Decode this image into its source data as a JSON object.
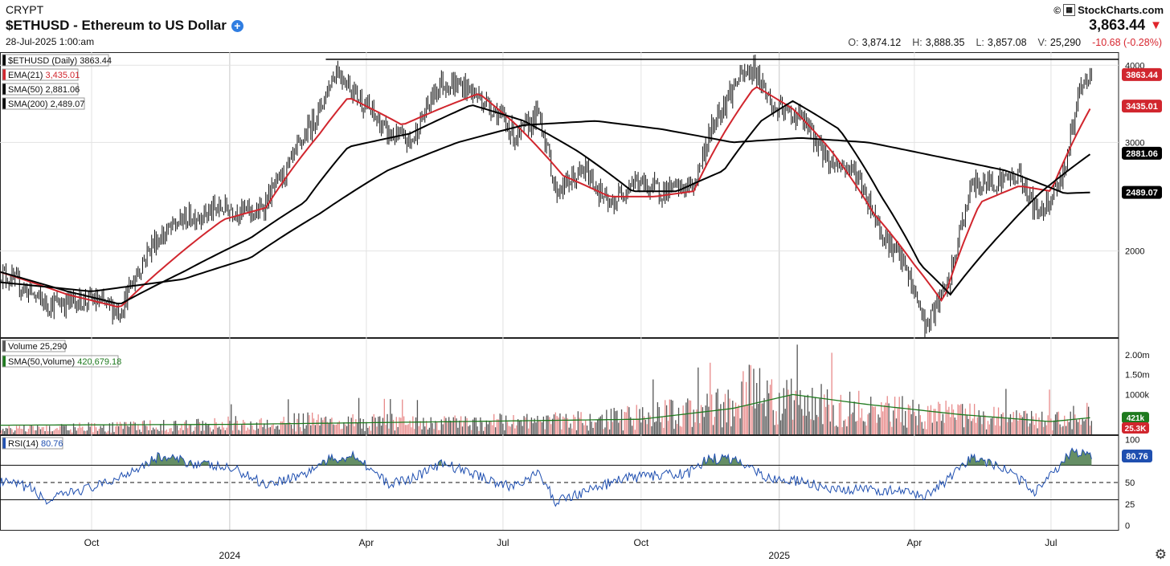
{
  "header": {
    "exchange": "CRYPT",
    "title": "$ETHUSD - Ethereum to US Dollar",
    "date": "28-Jul-2025 1:00:am",
    "brand": "StockCharts.com",
    "last_price": "3,863.44",
    "ohlc": [
      {
        "label": "O:",
        "value": "3,874.12"
      },
      {
        "label": "H:",
        "value": "3,888.35"
      },
      {
        "label": "L:",
        "value": "3,857.08"
      },
      {
        "label": "V:",
        "value": "25,290"
      }
    ],
    "change": "-10.68 (-0.28%)"
  },
  "colors": {
    "price": "#000000",
    "ema21": "#d1262e",
    "sma50": "#000000",
    "sma200": "#000000",
    "vol_up": "#555555",
    "vol_down": "#e88a8a",
    "vol_sma": "#1e7a1e",
    "rsi": "#1f4fb0",
    "rsi_fill": "#4a7a4a"
  },
  "chart_data": [
    {
      "type": "line",
      "panel": "price",
      "legend": [
        {
          "text": "$ETHUSD (Daily) 3863.44",
          "color": "#000000"
        },
        {
          "text": "EMA(21)",
          "value": "3,435.01",
          "color": "#d1262e"
        },
        {
          "text": "SMA(50)",
          "value": "2,881.06",
          "color": "#000000"
        },
        {
          "text": "SMA(200)",
          "value": "2,489.07",
          "color": "#000000"
        }
      ],
      "y_scale": "log",
      "ylim": [
        1450,
        4200
      ],
      "y_ticks": [
        2000,
        3000,
        4000
      ],
      "x_ticks": [
        "Oct",
        "2024",
        "Apr",
        "Jul",
        "Oct",
        "2025",
        "Apr",
        "Jul"
      ],
      "x_year_labels": [
        "2024",
        "2025"
      ],
      "x_range": [
        "2023-08-01",
        "2025-08-15"
      ],
      "resistance_level": 4090,
      "right_labels": [
        {
          "text": "3863.44",
          "value": 3863.44,
          "color": "#d1262e"
        },
        {
          "text": "3435.01",
          "value": 3435.01,
          "color": "#d1262e"
        },
        {
          "text": "2881.06",
          "value": 2881.06,
          "color": "#000000"
        },
        {
          "text": "2489.07",
          "value": 2489.07,
          "color": "#000000"
        }
      ],
      "series": [
        {
          "name": "$ETHUSD (Daily)",
          "x": [
            "2023-08-01",
            "2023-09-01",
            "2023-10-01",
            "2023-10-20",
            "2023-11-10",
            "2023-12-01",
            "2023-12-28",
            "2024-01-20",
            "2024-02-10",
            "2024-03-01",
            "2024-03-12",
            "2024-03-25",
            "2024-04-15",
            "2024-05-01",
            "2024-05-20",
            "2024-06-05",
            "2024-06-25",
            "2024-07-10",
            "2024-07-25",
            "2024-08-05",
            "2024-08-25",
            "2024-09-10",
            "2024-09-25",
            "2024-10-15",
            "2024-11-05",
            "2024-11-20",
            "2024-12-05",
            "2024-12-16",
            "2024-12-28",
            "2025-01-15",
            "2025-02-03",
            "2025-02-20",
            "2025-03-10",
            "2025-03-25",
            "2025-04-09",
            "2025-04-25",
            "2025-05-09",
            "2025-05-25",
            "2025-06-10",
            "2025-06-22",
            "2025-07-01",
            "2025-07-10",
            "2025-07-20",
            "2025-07-28"
          ],
          "values": [
            1850,
            1640,
            1670,
            1600,
            2050,
            2250,
            2350,
            2300,
            2750,
            3400,
            3950,
            3600,
            3100,
            3000,
            3750,
            3700,
            3400,
            3050,
            3350,
            2500,
            2700,
            2350,
            2600,
            2500,
            2550,
            3300,
            3800,
            3950,
            3400,
            3300,
            2800,
            2700,
            2150,
            1900,
            1500,
            1800,
            2550,
            2600,
            2650,
            2300,
            2450,
            2700,
            3600,
            3863.44
          ]
        },
        {
          "name": "EMA(21)",
          "x": [
            "2023-08-01",
            "2023-09-15",
            "2023-10-20",
            "2023-11-20",
            "2023-12-28",
            "2024-01-25",
            "2024-03-01",
            "2024-03-20",
            "2024-04-25",
            "2024-05-20",
            "2024-06-15",
            "2024-07-10",
            "2024-08-10",
            "2024-09-10",
            "2024-10-10",
            "2024-11-05",
            "2024-11-25",
            "2024-12-16",
            "2025-01-10",
            "2025-02-05",
            "2025-03-05",
            "2025-04-01",
            "2025-04-20",
            "2025-05-15",
            "2025-06-10",
            "2025-07-01",
            "2025-07-28"
          ],
          "values": [
            1850,
            1700,
            1620,
            1900,
            2250,
            2350,
            3100,
            3550,
            3200,
            3400,
            3600,
            3200,
            2650,
            2450,
            2450,
            2500,
            3100,
            3700,
            3400,
            2900,
            2300,
            1900,
            1650,
            2400,
            2550,
            2500,
            3435.01
          ]
        },
        {
          "name": "SMA(50)",
          "x": [
            "2023-08-01",
            "2023-09-15",
            "2023-10-20",
            "2023-12-01",
            "2024-01-15",
            "2024-02-20",
            "2024-03-20",
            "2024-04-30",
            "2024-06-10",
            "2024-07-15",
            "2024-08-20",
            "2024-09-25",
            "2024-10-25",
            "2024-11-25",
            "2024-12-20",
            "2025-01-10",
            "2025-02-10",
            "2025-03-10",
            "2025-04-05",
            "2025-04-25",
            "2025-05-30",
            "2025-06-25",
            "2025-07-28"
          ],
          "values": [
            1850,
            1720,
            1640,
            1850,
            2100,
            2400,
            2950,
            3100,
            3450,
            3250,
            2900,
            2500,
            2500,
            2700,
            3250,
            3500,
            3150,
            2450,
            1900,
            1700,
            2150,
            2500,
            2881.06
          ]
        },
        {
          "name": "SMA(200)",
          "x": [
            "2023-08-01",
            "2023-10-01",
            "2023-12-01",
            "2024-01-15",
            "2024-03-01",
            "2024-04-15",
            "2024-06-01",
            "2024-07-15",
            "2024-09-01",
            "2024-10-15",
            "2024-12-01",
            "2025-01-15",
            "2025-03-01",
            "2025-04-15",
            "2025-06-01",
            "2025-07-10",
            "2025-07-28"
          ],
          "values": [
            1780,
            1720,
            1800,
            1950,
            2300,
            2700,
            3000,
            3200,
            3250,
            3150,
            3000,
            3050,
            3000,
            2850,
            2700,
            2480,
            2489.07
          ]
        }
      ]
    },
    {
      "type": "bar",
      "panel": "volume",
      "legend": [
        {
          "text": "Volume",
          "value": "25,290",
          "color": "#555555"
        },
        {
          "text": "SMA(50,Volume)",
          "value": "420,679.18",
          "color": "#1e7a1e"
        }
      ],
      "y_ticks": [
        {
          "text": "2.00m",
          "value": 2000000
        },
        {
          "text": "1.50m",
          "value": 1500000
        },
        {
          "text": "1000k",
          "value": 1000000
        }
      ],
      "ylim": [
        0,
        2300000
      ],
      "right_labels": [
        {
          "text": "421k",
          "value": 421000,
          "color": "#1e7a1e"
        },
        {
          "text": "25.3K",
          "value": 25300,
          "color": "#d1262e"
        }
      ],
      "vol_sma": {
        "x": [
          "2023-08-01",
          "2024-01-01",
          "2024-06-01",
          "2024-10-01",
          "2024-12-01",
          "2025-01-10",
          "2025-03-01",
          "2025-05-01",
          "2025-07-01",
          "2025-07-28"
        ],
        "values": [
          230000,
          250000,
          320000,
          380000,
          650000,
          1000000,
          750000,
          500000,
          320000,
          421000
        ]
      },
      "level_anchors": {
        "x": [
          "2023-08-01",
          "2023-12-01",
          "2024-03-01",
          "2024-06-01",
          "2024-09-01",
          "2024-11-15",
          "2024-12-10",
          "2025-01-20",
          "2025-03-01",
          "2025-05-01",
          "2025-06-20",
          "2025-07-20"
        ],
        "values": [
          150000,
          260000,
          380000,
          330000,
          400000,
          700000,
          1200000,
          900000,
          700000,
          550000,
          400000,
          550000
        ]
      }
    },
    {
      "type": "line",
      "panel": "rsi",
      "legend": [
        {
          "text": "RSI(14)",
          "value": "80.76",
          "color": "#1f4fb0"
        }
      ],
      "ylim": [
        -5,
        105
      ],
      "y_ticks": [
        0,
        25,
        50,
        100
      ],
      "levels": [
        70,
        50,
        30
      ],
      "right_labels": [
        {
          "text": "80.76",
          "value": 80.76,
          "color": "#1f4fb0"
        }
      ],
      "series": [
        {
          "name": "RSI(14)",
          "x": [
            "2023-08-01",
            "2023-08-20",
            "2023-09-01",
            "2023-09-20",
            "2023-10-10",
            "2023-11-01",
            "2023-11-15",
            "2023-12-10",
            "2024-01-05",
            "2024-01-25",
            "2024-02-20",
            "2024-03-05",
            "2024-03-25",
            "2024-04-15",
            "2024-05-01",
            "2024-05-22",
            "2024-06-15",
            "2024-07-05",
            "2024-07-25",
            "2024-08-05",
            "2024-08-25",
            "2024-09-20",
            "2024-10-10",
            "2024-11-01",
            "2024-11-15",
            "2024-12-05",
            "2024-12-25",
            "2025-01-20",
            "2025-02-05",
            "2025-03-01",
            "2025-03-20",
            "2025-04-09",
            "2025-04-25",
            "2025-05-10",
            "2025-06-01",
            "2025-06-20",
            "2025-07-01",
            "2025-07-15",
            "2025-07-28"
          ],
          "values": [
            50,
            45,
            28,
            40,
            48,
            68,
            80,
            72,
            65,
            48,
            60,
            75,
            82,
            48,
            55,
            72,
            58,
            45,
            60,
            28,
            40,
            55,
            58,
            60,
            78,
            76,
            55,
            50,
            40,
            42,
            40,
            35,
            55,
            80,
            65,
            40,
            60,
            85,
            80.76
          ]
        }
      ]
    }
  ]
}
